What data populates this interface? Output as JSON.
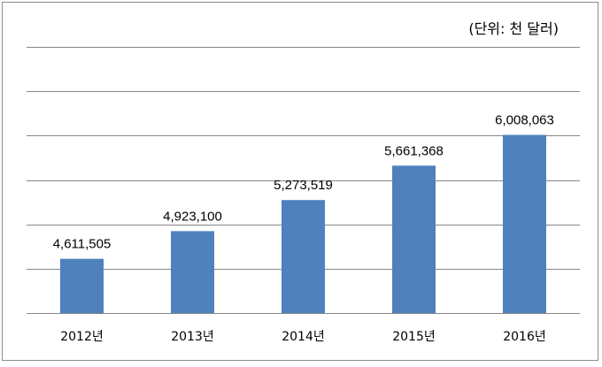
{
  "chart_data": {
    "type": "bar",
    "unit_label": "(단위: 천 달러)",
    "categories": [
      "2012년",
      "2013년",
      "2014년",
      "2015년",
      "2016년"
    ],
    "values": [
      4611505,
      4923100,
      5273519,
      5661368,
      6008063
    ],
    "data_labels": [
      "4,611,505",
      "4,923,100",
      "5,273,519",
      "5,661,368",
      "6,008,063"
    ],
    "ylim": [
      4000000,
      7000000
    ],
    "grid": true,
    "bar_color": "#4f81bd",
    "gridline_color": "#868686"
  }
}
